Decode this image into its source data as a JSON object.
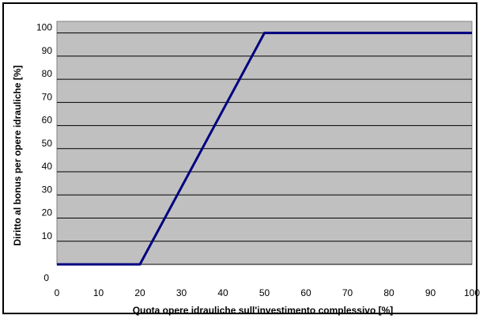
{
  "chart_data": {
    "type": "line",
    "title": "",
    "xlabel": "Quota opere idrauliche sull'investimento complessivo [%]",
    "ylabel": "Diritto al bonus per opere idrauliche [%]",
    "xlim": [
      0,
      100
    ],
    "ylim": [
      0,
      105
    ],
    "xticks": [
      0,
      10,
      20,
      30,
      40,
      50,
      60,
      70,
      80,
      90,
      100
    ],
    "yticks": [
      0,
      10,
      20,
      30,
      40,
      50,
      60,
      70,
      80,
      90,
      100
    ],
    "grid": "horizontal",
    "legend": "none",
    "plot_bg_color": "#c0c0c0",
    "line_color": "#000080",
    "series": [
      {
        "x": [
          0,
          20,
          50,
          100
        ],
        "y": [
          0,
          0,
          100,
          100
        ]
      }
    ]
  }
}
